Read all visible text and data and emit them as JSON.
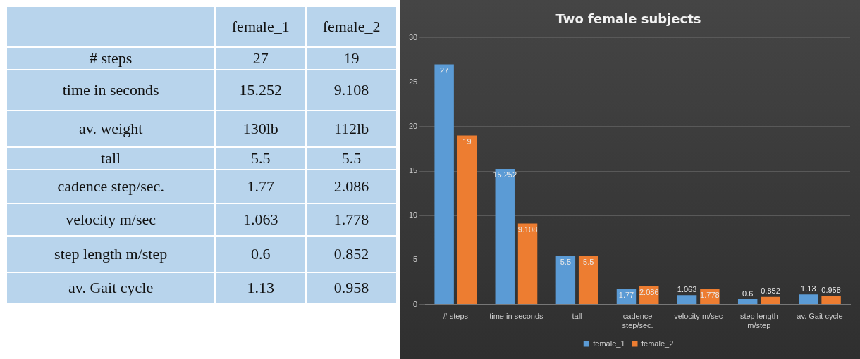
{
  "chart_data": [
    {
      "type": "other",
      "annotations": [
        "female_1",
        "female_2",
        "# steps",
        "27",
        "19",
        "time in seconds",
        "15.252",
        "9.108",
        "av. weight",
        "130lb",
        "112lb",
        "tall",
        "5.5",
        "5.5",
        "cadence step/sec.",
        "1.77",
        "2.086",
        "velocity m/sec",
        "1.063",
        "1.778",
        "step length m/step",
        "0.6",
        "0.852",
        "av. Gait cycle",
        "1.13",
        "0.958"
      ]
    },
    {
      "type": "bar",
      "title": "Two female subjects",
      "categories": [
        "# steps",
        "time in seconds",
        "tall",
        "cadence step/sec.",
        "velocity m/sec",
        "step length m/step",
        "av. Gait cycle"
      ],
      "series": [
        {
          "name": "female_1",
          "color": "#5b9bd5",
          "values": [
            27,
            15.252,
            5.5,
            1.77,
            1.063,
            0.6,
            1.13
          ]
        },
        {
          "name": "female_2",
          "color": "#ed7d31",
          "values": [
            19,
            9.108,
            5.5,
            2.086,
            1.778,
            0.852,
            0.958
          ]
        }
      ],
      "ylim": [
        0,
        30
      ],
      "yticks": [
        0,
        5,
        10,
        15,
        20,
        25,
        30
      ],
      "grid": "y",
      "legend": "bottom",
      "data_labels": true
    }
  ]
}
